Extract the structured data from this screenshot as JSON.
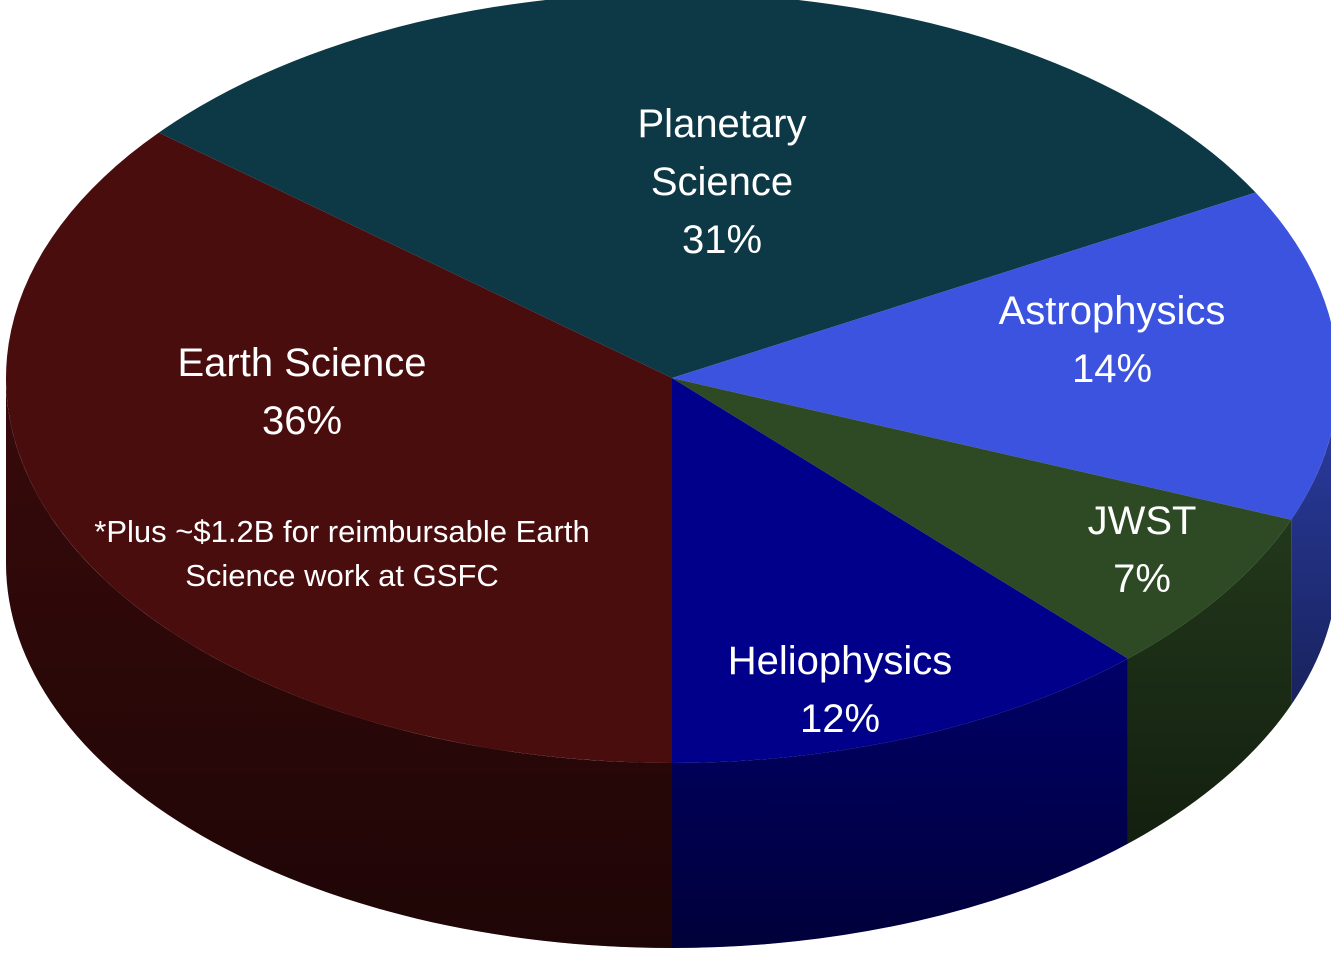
{
  "chart_data": {
    "type": "pie",
    "categories": [
      "Planetary Science",
      "Astrophysics",
      "JWST",
      "Heliophysics",
      "Earth Science"
    ],
    "values": [
      31,
      14,
      7,
      12,
      36
    ],
    "value_labels": [
      "31%",
      "14%",
      "7%",
      "12%",
      "36%"
    ],
    "colors": [
      "#0d3947",
      "#3b53df",
      "#2d4a24",
      "#00008a",
      "#4a0d0e"
    ],
    "annotations": [
      "*Plus ~$1.2B for reimbursable Earth Science work at GSFC"
    ]
  }
}
